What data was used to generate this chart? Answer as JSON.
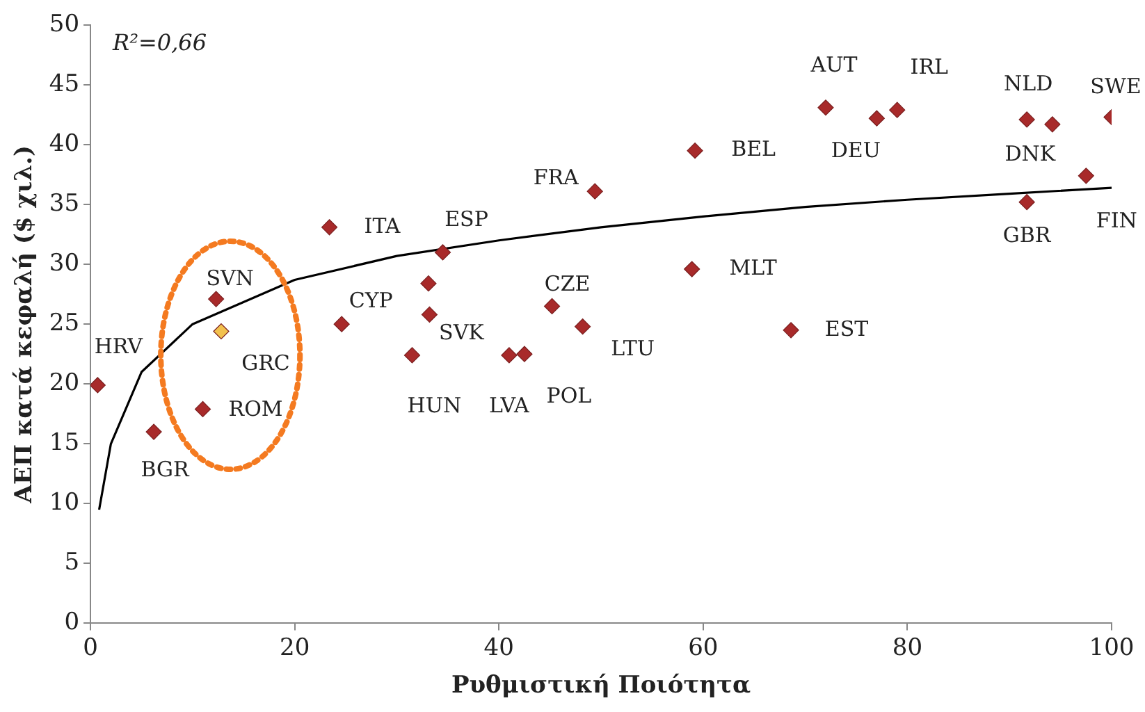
{
  "chart_data": {
    "type": "scatter",
    "xlabel": "Ρυθμιστική Ποιότητα",
    "ylabel": "ΑΕΠ κατά κεφαλή ($ χιλ.)",
    "xlim": [
      0,
      100
    ],
    "xticks": [
      0,
      20,
      40,
      60,
      80,
      100
    ],
    "ylim": [
      0,
      50
    ],
    "yticks": [
      0,
      5,
      10,
      15,
      20,
      25,
      30,
      35,
      40,
      45,
      50
    ],
    "grid": false,
    "legend": false,
    "marker": "diamond",
    "series": [
      {
        "color": "#a82a2a",
        "x": [
          0.7,
          6.2,
          11.0,
          12.3,
          12.8,
          23.4,
          24.6,
          31.5,
          33.2,
          34.5,
          41.0,
          42.5,
          45.2,
          48.2,
          49.4,
          59.2,
          58.9,
          68.6,
          72.0,
          77.0,
          79.0,
          91.7,
          94.2,
          91.7,
          97.5,
          100,
          33.1
        ],
        "values": [
          19.9,
          16.0,
          17.9,
          27.1,
          24.4,
          33.1,
          25.0,
          22.4,
          25.8,
          31.0,
          22.4,
          22.5,
          26.5,
          24.8,
          36.1,
          39.5,
          29.6,
          24.5,
          43.1,
          42.2,
          42.9,
          42.1,
          41.7,
          35.2,
          37.4,
          42.3,
          28.4
        ],
        "colors": [
          "#a82a2a",
          "#a82a2a",
          "#a82a2a",
          "#a82a2a",
          "#f2c14e",
          "#a82a2a",
          "#a82a2a",
          "#a82a2a",
          "#a82a2a",
          "#a82a2a",
          "#a82a2a",
          "#a82a2a",
          "#a82a2a",
          "#a82a2a",
          "#a82a2a",
          "#a82a2a",
          "#a82a2a",
          "#a82a2a",
          "#a82a2a",
          "#a82a2a",
          "#a82a2a",
          "#a82a2a",
          "#a82a2a",
          "#a82a2a",
          "#a82a2a",
          "#a82a2a",
          "#a82a2a"
        ]
      },
      {
        "type": "line",
        "color": "#000000",
        "marker": "none",
        "x": [
          0.85,
          2,
          5,
          10,
          20,
          30,
          40,
          50,
          60,
          70,
          80,
          90,
          100
        ],
        "values": [
          9.5,
          15,
          21,
          25,
          28.7,
          30.7,
          32,
          33.1,
          34,
          34.8,
          35.4,
          35.9,
          36.4
        ]
      }
    ],
    "annotations": [
      "R²=0,66",
      {
        "text": "HRV",
        "x": 0.7,
        "y": 19.9
      },
      {
        "text": "BGR",
        "x": 6.2,
        "y": 16.0
      },
      {
        "text": "ROM",
        "x": 11.0,
        "y": 17.9
      },
      {
        "text": "SVN",
        "x": 12.3,
        "y": 27.1
      },
      {
        "text": "GRC",
        "x": 12.8,
        "y": 24.4
      },
      {
        "text": "ITA",
        "x": 23.4,
        "y": 33.1
      },
      {
        "text": "CYP",
        "x": 24.6,
        "y": 25.0
      },
      {
        "text": "HUN",
        "x": 31.5,
        "y": 22.4
      },
      {
        "text": "SVK",
        "x": 33.2,
        "y": 25.8
      },
      {
        "text": "ESP",
        "x": 34.5,
        "y": 31.0
      },
      {
        "text": "LVA",
        "x": 41.0,
        "y": 22.4
      },
      {
        "text": "POL",
        "x": 42.5,
        "y": 22.5
      },
      {
        "text": "CZE",
        "x": 45.2,
        "y": 26.5
      },
      {
        "text": "LTU",
        "x": 48.2,
        "y": 24.8
      },
      {
        "text": "FRA",
        "x": 49.4,
        "y": 36.1
      },
      {
        "text": "BEL",
        "x": 59.2,
        "y": 39.5
      },
      {
        "text": "MLT",
        "x": 58.9,
        "y": 29.6
      },
      {
        "text": "EST",
        "x": 68.6,
        "y": 24.5
      },
      {
        "text": "AUT",
        "x": 72.0,
        "y": 43.1
      },
      {
        "text": "DEU",
        "x": 77.0,
        "y": 42.2
      },
      {
        "text": "IRL",
        "x": 79.0,
        "y": 42.9
      },
      {
        "text": "NLD",
        "x": 91.7,
        "y": 42.1
      },
      {
        "text": "DNK",
        "x": 94.2,
        "y": 41.7
      },
      {
        "text": "GBR",
        "x": 91.7,
        "y": 35.2
      },
      {
        "text": "FIN",
        "x": 97.5,
        "y": 37.4
      },
      {
        "text": "SWE",
        "x": 100,
        "y": 42.3
      }
    ]
  }
}
